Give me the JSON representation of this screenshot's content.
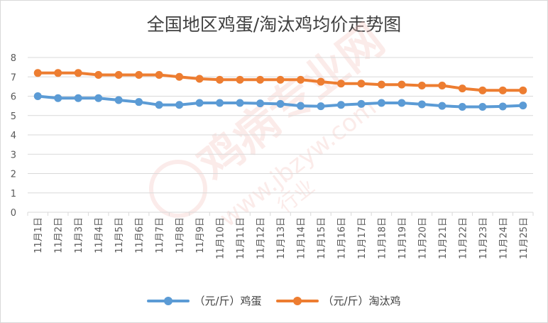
{
  "colors": {
    "egg": "#5b9bd5",
    "hen": "#ed7d31",
    "grid": "#d9d9d9",
    "axis_text": "#595959",
    "watermark": "#f4c7c3"
  },
  "watermark": {
    "brand": "鸡病专业网",
    "url": "www.jbzyw.com",
    "slogan": "行业"
  },
  "chart_data": {
    "type": "line",
    "title": "全国地区鸡蛋/淘汰鸡均价走势图",
    "xlabel": "",
    "ylabel": "",
    "ylim": [
      0,
      8
    ],
    "yticks": [
      0,
      1,
      2,
      3,
      4,
      5,
      6,
      7,
      8
    ],
    "grid": true,
    "legend_position": "bottom",
    "categories": [
      "11月1日",
      "11月2日",
      "11月3日",
      "11月4日",
      "11月5日",
      "11月6日",
      "11月7日",
      "11月8日",
      "11月9日",
      "11月10日",
      "11月11日",
      "11月12日",
      "11月13日",
      "11月14日",
      "11月15日",
      "11月16日",
      "11月17日",
      "11月18日",
      "11月19日",
      "11月20日",
      "11月21日",
      "11月22日",
      "11月23日",
      "11月24日",
      "11月25日"
    ],
    "series": [
      {
        "name": "（元/斤）鸡蛋",
        "color": "#5b9bd5",
        "values": [
          6.0,
          5.9,
          5.9,
          5.9,
          5.8,
          5.7,
          5.55,
          5.55,
          5.65,
          5.65,
          5.65,
          5.63,
          5.6,
          5.5,
          5.48,
          5.55,
          5.6,
          5.65,
          5.65,
          5.58,
          5.5,
          5.45,
          5.45,
          5.47,
          5.52
        ]
      },
      {
        "name": "（元/斤）淘汰鸡",
        "color": "#ed7d31",
        "values": [
          7.2,
          7.2,
          7.2,
          7.1,
          7.1,
          7.1,
          7.1,
          7.0,
          6.9,
          6.85,
          6.85,
          6.85,
          6.85,
          6.85,
          6.75,
          6.65,
          6.65,
          6.6,
          6.6,
          6.55,
          6.55,
          6.4,
          6.3,
          6.3,
          6.3
        ]
      }
    ]
  }
}
